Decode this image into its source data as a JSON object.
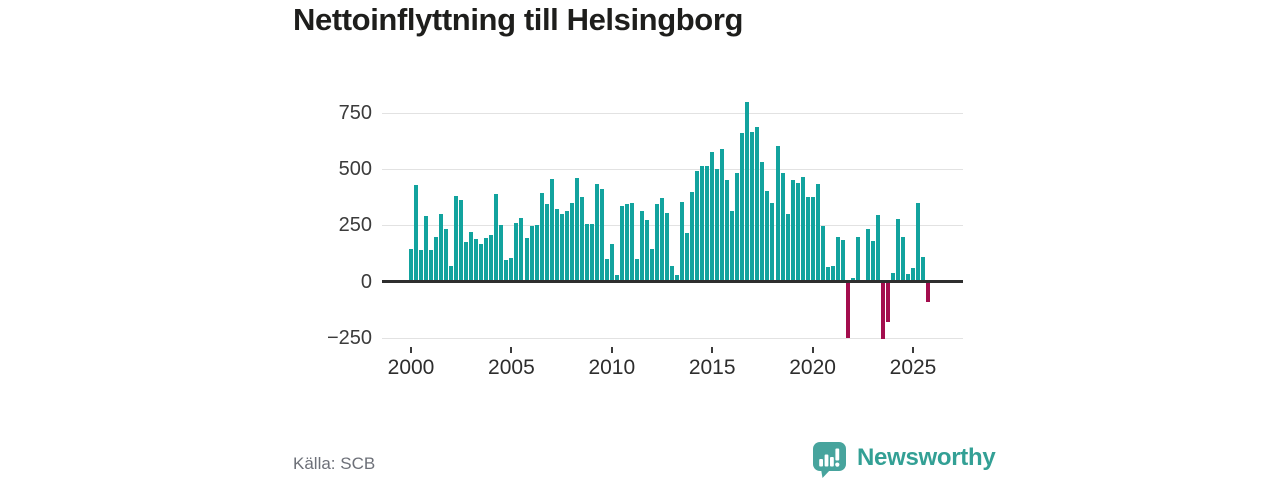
{
  "page": {
    "background": "#ffffff"
  },
  "header": {
    "title": "Nettoinflyttning till Helsingborg"
  },
  "footer": {
    "source_label": "Källa: SCB",
    "brand_name": "Newsworthy",
    "brand_color": "#33a095"
  },
  "chart_data": {
    "type": "bar",
    "title": "Nettoinflyttning till Helsingborg",
    "xlabel": "",
    "ylabel": "",
    "frequency": "quarterly",
    "x_start": "2000-Q1",
    "x_end": "2025-Q4",
    "series": [
      {
        "name": "Nettoinflyttning",
        "values": [
          145,
          430,
          140,
          290,
          140,
          200,
          300,
          235,
          70,
          380,
          365,
          175,
          220,
          190,
          165,
          195,
          205,
          390,
          250,
          95,
          105,
          260,
          285,
          195,
          245,
          250,
          395,
          345,
          455,
          325,
          300,
          315,
          350,
          460,
          375,
          255,
          255,
          435,
          410,
          100,
          165,
          30,
          335,
          345,
          350,
          100,
          315,
          275,
          145,
          345,
          370,
          305,
          70,
          30,
          355,
          215,
          400,
          490,
          515,
          515,
          575,
          500,
          590,
          450,
          315,
          485,
          660,
          800,
          665,
          690,
          530,
          405,
          350,
          605,
          485,
          300,
          450,
          440,
          465,
          375,
          375,
          435,
          245,
          65,
          70,
          200,
          185,
          -250,
          15,
          200,
          0,
          235,
          180,
          295,
          -255,
          -180,
          40,
          280,
          200,
          35,
          60,
          350,
          110,
          -90
        ]
      }
    ],
    "ylim": [
      -290,
      860
    ],
    "ytick_values": [
      750,
      500,
      250,
      0,
      -250
    ],
    "ytick_labels": [
      "750",
      "500",
      "250",
      "0",
      "−250"
    ],
    "xtick_years": [
      2000,
      2005,
      2010,
      2015,
      2020,
      2025
    ],
    "xtick_labels": [
      "2000",
      "2005",
      "2010",
      "2015",
      "2020",
      "2025"
    ],
    "grid": "horizontal",
    "legend": "none",
    "colors": {
      "positive": "#12a39e",
      "negative": "#a30d4d",
      "zero_line": "#2e2e2e",
      "grid_line": "#e2e2e2"
    }
  }
}
